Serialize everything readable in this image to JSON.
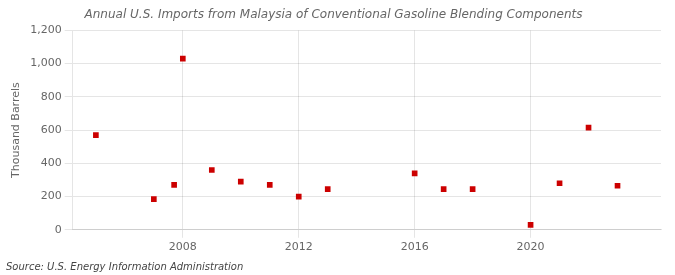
{
  "chart_data": {
    "type": "scatter",
    "title": "Annual U.S. Imports from Malaysia of Conventional Gasoline Blending Components",
    "ylabel": "Thousand Barrels",
    "annotation": "Source: U.S. Energy Information Administration",
    "x": [
      2005,
      2007,
      2007.7,
      2008,
      2009,
      2010,
      2011,
      2012,
      2013,
      2016,
      2017,
      2018,
      2020,
      2021,
      2022,
      2023
    ],
    "values": [
      570,
      185,
      270,
      1030,
      360,
      290,
      270,
      200,
      245,
      340,
      245,
      245,
      30,
      280,
      615,
      265
    ],
    "color": "#cc0000",
    "marker": "square",
    "xlim": [
      2004.2,
      2024.5
    ],
    "ylim": [
      0,
      1200
    ],
    "xticks": [
      2008,
      2012,
      2016,
      2020
    ],
    "yticks": [
      0,
      200,
      400,
      600,
      800,
      {
        "value": 1000,
        "label": "1,000"
      },
      {
        "value": 1200,
        "label": "1,200"
      }
    ],
    "grid": true
  }
}
